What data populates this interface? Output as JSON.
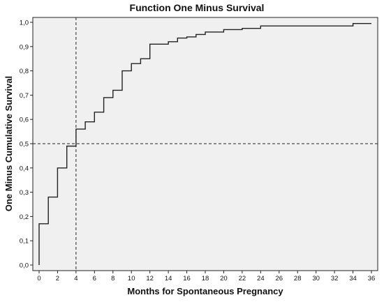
{
  "chart_data": {
    "type": "step",
    "title": "Function One Minus Survival",
    "xlabel": "Months for Spontaneous Pregnancy",
    "ylabel": "One Minus Cumulative Survival",
    "xlim": [
      0,
      36
    ],
    "ylim": [
      0,
      1
    ],
    "x_ticks": [
      "0",
      "2",
      "4",
      "6",
      "8",
      "10",
      "12",
      "14",
      "16",
      "18",
      "20",
      "22",
      "24",
      "26",
      "28",
      "30",
      "32",
      "34",
      "36"
    ],
    "y_ticks": [
      "0,0",
      "0,1",
      "0,2",
      "0,3",
      "0,4",
      "0,5",
      "0,6",
      "0,7",
      "0,8",
      "0,9",
      "1,0"
    ],
    "series": [
      {
        "x": [
          0,
          0,
          1,
          1,
          2,
          2,
          3,
          3,
          4,
          4,
          5,
          5,
          6,
          6,
          7,
          7,
          8,
          8,
          9,
          9,
          10,
          10,
          11,
          11,
          12,
          12,
          14,
          14,
          15,
          15,
          16,
          16,
          17,
          17,
          18,
          18,
          20,
          20,
          22,
          22,
          24,
          24,
          34,
          34,
          36
        ],
        "y": [
          0.0,
          0.17,
          0.17,
          0.28,
          0.28,
          0.4,
          0.4,
          0.49,
          0.49,
          0.56,
          0.56,
          0.59,
          0.59,
          0.63,
          0.63,
          0.69,
          0.69,
          0.72,
          0.72,
          0.8,
          0.8,
          0.83,
          0.83,
          0.85,
          0.85,
          0.91,
          0.91,
          0.92,
          0.92,
          0.935,
          0.935,
          0.94,
          0.94,
          0.95,
          0.95,
          0.96,
          0.96,
          0.97,
          0.97,
          0.975,
          0.975,
          0.985,
          0.985,
          0.995,
          0.995
        ]
      }
    ],
    "reference_lines": {
      "x": 4,
      "y": 0.5
    },
    "grid": false
  }
}
